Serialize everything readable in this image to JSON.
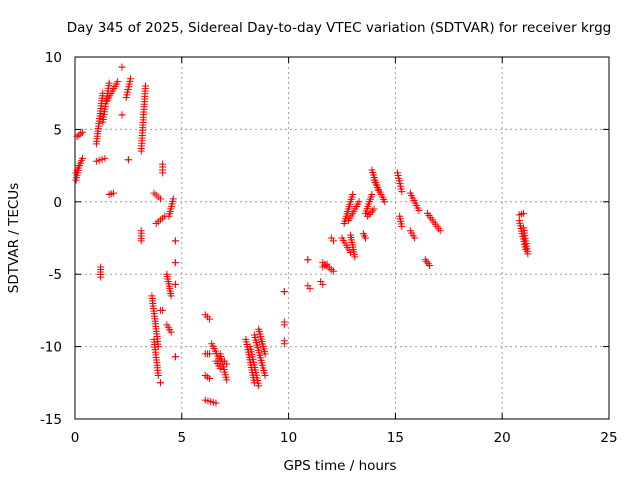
{
  "chart_data": {
    "type": "scatter",
    "title": "Day 345 of 2025, Sidereal Day-to-day VTEC variation (SDTVAR) for receiver krgg",
    "xlabel": "GPS time / hours",
    "ylabel": "SDTVAR / TECUs",
    "xlim": [
      0,
      25
    ],
    "ylim": [
      -15,
      10
    ],
    "xticks": [
      0,
      5,
      10,
      15,
      20,
      25
    ],
    "yticks": [
      -15,
      -10,
      -5,
      0,
      5,
      10
    ],
    "xtick_labels": [
      "0",
      "5",
      "10",
      "15",
      "20",
      "25"
    ],
    "ytick_labels": [
      "-15",
      "-10",
      "-5",
      "0",
      "5",
      "10"
    ],
    "grid": true,
    "marker": "+",
    "color": "#ff0000",
    "segments": [
      [
        0.05,
        2.0,
        0.35,
        3.0
      ],
      [
        0.05,
        1.5,
        0.2,
        2.5
      ],
      [
        0.1,
        4.5,
        0.35,
        4.8
      ],
      [
        1.0,
        2.8,
        1.4,
        3.0
      ],
      [
        1.0,
        4.0,
        1.3,
        7.5
      ],
      [
        1.3,
        5.5,
        1.6,
        8.2
      ],
      [
        1.5,
        7.0,
        2.0,
        8.3
      ],
      [
        1.6,
        0.5,
        1.8,
        0.6
      ],
      [
        2.2,
        9.3,
        2.2,
        9.3
      ],
      [
        2.2,
        6.0,
        2.2,
        6.0
      ],
      [
        2.4,
        7.2,
        2.6,
        8.5
      ],
      [
        2.5,
        2.9,
        2.5,
        2.9
      ],
      [
        1.2,
        -4.5,
        1.2,
        -5.2
      ],
      [
        3.1,
        -2.0,
        3.1,
        -2.7
      ],
      [
        3.1,
        3.5,
        3.3,
        8.0
      ],
      [
        3.6,
        -6.5,
        3.9,
        -10.0
      ],
      [
        3.7,
        -9.5,
        3.9,
        -12.0
      ],
      [
        3.7,
        0.6,
        4.0,
        0.2
      ],
      [
        3.8,
        -1.5,
        4.2,
        -1.0
      ],
      [
        4.1,
        2.0,
        4.1,
        2.6
      ],
      [
        4.0,
        -7.5,
        4.1,
        -7.5
      ],
      [
        4.0,
        -12.5,
        4.0,
        -12.5
      ],
      [
        4.4,
        -1.0,
        4.6,
        0.2
      ],
      [
        4.3,
        -5.0,
        4.5,
        -6.5
      ],
      [
        4.3,
        -8.5,
        4.5,
        -9.0
      ],
      [
        4.7,
        -2.7,
        4.7,
        -2.7
      ],
      [
        4.7,
        -4.2,
        4.7,
        -4.2
      ],
      [
        4.7,
        -5.7,
        4.7,
        -5.7
      ],
      [
        4.7,
        -10.7,
        4.7,
        -10.7
      ],
      [
        6.1,
        -7.8,
        6.3,
        -8.1
      ],
      [
        6.1,
        -10.5,
        6.3,
        -10.5
      ],
      [
        6.1,
        -12.0,
        6.3,
        -12.2
      ],
      [
        6.1,
        -13.7,
        6.6,
        -13.9
      ],
      [
        6.4,
        -9.8,
        6.8,
        -11.0
      ],
      [
        6.6,
        -11.0,
        6.8,
        -11.5
      ],
      [
        6.8,
        -10.5,
        7.1,
        -12.3
      ],
      [
        7.0,
        -11.0,
        7.1,
        -11.2
      ],
      [
        8.0,
        -9.5,
        8.4,
        -12.5
      ],
      [
        8.2,
        -10.0,
        8.6,
        -12.7
      ],
      [
        8.4,
        -9.2,
        8.9,
        -12.0
      ],
      [
        8.6,
        -8.8,
        8.9,
        -10.5
      ],
      [
        9.8,
        -6.2,
        9.8,
        -6.2
      ],
      [
        9.8,
        -8.3,
        9.8,
        -8.5
      ],
      [
        9.8,
        -9.6,
        9.8,
        -9.8
      ],
      [
        10.9,
        -4.0,
        10.9,
        -4.0
      ],
      [
        10.9,
        -5.8,
        11.0,
        -6.0
      ],
      [
        11.5,
        -5.5,
        11.6,
        -5.7
      ],
      [
        11.6,
        -4.2,
        12.1,
        -4.8
      ],
      [
        11.6,
        -4.5,
        11.8,
        -4.3
      ],
      [
        12.0,
        -2.5,
        12.1,
        -2.7
      ],
      [
        12.5,
        -2.5,
        12.9,
        -3.5
      ],
      [
        12.6,
        -1.5,
        13.0,
        0.5
      ],
      [
        12.9,
        -2.3,
        13.1,
        -3.8
      ],
      [
        12.8,
        -1.3,
        13.3,
        0.0
      ],
      [
        13.5,
        -2.2,
        13.6,
        -2.5
      ],
      [
        13.6,
        -0.8,
        13.9,
        0.5
      ],
      [
        13.7,
        -1.0,
        14.0,
        -0.5
      ],
      [
        13.9,
        2.2,
        14.2,
        0.8
      ],
      [
        14.0,
        1.5,
        14.5,
        0.0
      ],
      [
        15.1,
        2.0,
        15.3,
        0.7
      ],
      [
        15.2,
        -1.0,
        15.3,
        -1.7
      ],
      [
        15.7,
        0.6,
        16.1,
        -0.6
      ],
      [
        15.7,
        -2.0,
        15.9,
        -2.5
      ],
      [
        16.4,
        -4.0,
        16.6,
        -4.4
      ],
      [
        16.5,
        -0.8,
        17.1,
        -2.0
      ],
      [
        20.8,
        -0.9,
        21.0,
        -0.8
      ],
      [
        20.8,
        -1.3,
        21.1,
        -3.3
      ],
      [
        21.0,
        -1.8,
        21.2,
        -3.6
      ]
    ]
  }
}
